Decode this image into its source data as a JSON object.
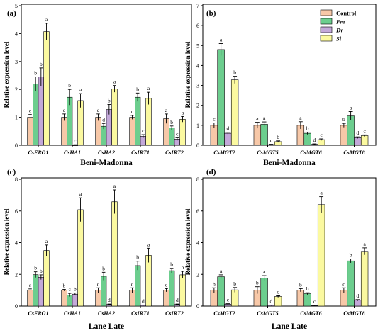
{
  "chart_data": [
    {
      "type": "bar",
      "panel_label": "(a)",
      "ylabel": "Relative expression level",
      "xlabel": "Beni-Madonna",
      "ylim": [
        0,
        5
      ],
      "yticks": [
        0,
        1,
        2,
        3,
        4,
        5
      ],
      "categories": [
        "CsFRO1",
        "CsHA1",
        "CsHA2",
        "CsIRT1",
        "CsIRT2"
      ],
      "series": [
        {
          "name": "Control",
          "values": [
            1.0,
            1.0,
            1.0,
            1.0,
            0.95
          ],
          "errors": [
            0.1,
            0.12,
            0.12,
            0.07,
            0.17
          ],
          "letters": [
            "c",
            "c",
            "c",
            "c",
            "a"
          ]
        },
        {
          "name": "Fm",
          "values": [
            2.2,
            1.72,
            0.68,
            1.72,
            0.62
          ],
          "errors": [
            0.25,
            0.28,
            0.1,
            0.15,
            0.07
          ],
          "letters": [
            "b",
            "b",
            "d",
            "b",
            "b"
          ]
        },
        {
          "name": "Dv",
          "values": [
            2.45,
            0.0,
            1.28,
            0.32,
            0.22
          ],
          "errors": [
            0.32,
            0.02,
            0.18,
            0.06,
            0.05
          ],
          "letters": [
            "b",
            "c",
            "b",
            "c",
            "c"
          ]
        },
        {
          "name": "Si",
          "values": [
            4.07,
            1.6,
            2.02,
            1.68,
            0.93
          ],
          "errors": [
            0.3,
            0.25,
            0.12,
            0.22,
            0.1
          ],
          "letters": [
            "a",
            "a",
            "a",
            "a",
            "a"
          ]
        }
      ]
    },
    {
      "type": "bar",
      "panel_label": "(b)",
      "ylabel": "Relative expression level",
      "xlabel": "Beni-Madonna",
      "ylim": [
        0,
        7
      ],
      "yticks": [
        0,
        1,
        2,
        3,
        4,
        5,
        6,
        7
      ],
      "categories": [
        "CsMGT2",
        "CsMGT5",
        "CsMGT6",
        "CsMGT8"
      ],
      "series": [
        {
          "name": "Control",
          "values": [
            1.0,
            1.0,
            1.0,
            1.0
          ],
          "errors": [
            0.12,
            0.15,
            0.18,
            0.1
          ],
          "letters": [
            "c",
            "a",
            "a",
            "b"
          ]
        },
        {
          "name": "Fm",
          "values": [
            4.8,
            1.05,
            0.6,
            1.47
          ],
          "errors": [
            0.3,
            0.12,
            0.06,
            0.22
          ],
          "letters": [
            "a",
            "a",
            "b",
            "a"
          ]
        },
        {
          "name": "Dv",
          "values": [
            0.6,
            0.03,
            0.05,
            0.38
          ],
          "errors": [
            0.05,
            0.02,
            0.02,
            0.04
          ],
          "letters": [
            "d",
            "c",
            "d",
            "d"
          ]
        },
        {
          "name": "Si",
          "values": [
            3.28,
            0.18,
            0.28,
            0.48
          ],
          "errors": [
            0.18,
            0.04,
            0.04,
            0.04
          ],
          "letters": [
            "b",
            "b",
            "c",
            "c"
          ]
        }
      ]
    },
    {
      "type": "bar",
      "panel_label": "(c)",
      "ylabel": "Relative expression level",
      "xlabel": "Lane Late",
      "ylim": [
        0,
        8
      ],
      "yticks": [
        0,
        2,
        4,
        6,
        8
      ],
      "categories": [
        "CsFRO1",
        "CsHA1",
        "CsHA2",
        "CsIRT1",
        "CsIRT2"
      ],
      "series": [
        {
          "name": "Control",
          "values": [
            1.0,
            1.0,
            1.0,
            1.0,
            1.0
          ],
          "errors": [
            0.08,
            0.05,
            0.15,
            0.15,
            0.1
          ],
          "letters": [
            "c",
            "b",
            "c",
            "c",
            "c"
          ]
        },
        {
          "name": "Fm",
          "values": [
            1.98,
            0.7,
            1.88,
            2.55,
            2.23
          ],
          "errors": [
            0.18,
            0.1,
            0.25,
            0.28,
            0.15
          ],
          "letters": [
            "b",
            "c",
            "b",
            "b",
            "b"
          ]
        },
        {
          "name": "Dv",
          "values": [
            1.82,
            0.75,
            0.1,
            0.05,
            0.1
          ],
          "errors": [
            0.15,
            0.08,
            0.03,
            0.02,
            0.03
          ],
          "letters": [
            "b",
            "b",
            "d",
            "d",
            "d"
          ]
        },
        {
          "name": "Si",
          "values": [
            3.5,
            6.08,
            6.58,
            3.2,
            1.97
          ],
          "errors": [
            0.35,
            0.75,
            0.75,
            0.45,
            0.22
          ],
          "letters": [
            "a",
            "a",
            "a",
            "a",
            "b"
          ]
        }
      ]
    },
    {
      "type": "bar",
      "panel_label": "(d)",
      "ylabel": "Relative expression level",
      "xlabel": "Lane Late",
      "ylim": [
        0,
        8
      ],
      "yticks": [
        0,
        2,
        4,
        6,
        8
      ],
      "categories": [
        "CsMGT2",
        "CsMGT5",
        "CsMGT6",
        "CsMGT8"
      ],
      "series": [
        {
          "name": "Control",
          "values": [
            1.0,
            1.0,
            1.0,
            1.0
          ],
          "errors": [
            0.15,
            0.22,
            0.1,
            0.15
          ],
          "letters": [
            "b",
            "b",
            "b",
            "c"
          ]
        },
        {
          "name": "Fm",
          "values": [
            1.85,
            1.77,
            0.78,
            2.85
          ],
          "errors": [
            0.12,
            0.15,
            0.06,
            0.12
          ],
          "letters": [
            "a",
            "a",
            "b",
            "b"
          ]
        },
        {
          "name": "Dv",
          "values": [
            0.12,
            0.05,
            0.03,
            0.37
          ],
          "errors": [
            0.03,
            0.02,
            0.02,
            0.04
          ],
          "letters": [
            "c",
            "d",
            "c",
            "d"
          ]
        },
        {
          "name": "Si",
          "values": [
            1.02,
            0.6,
            6.4,
            3.45
          ],
          "errors": [
            0.15,
            0.05,
            0.5,
            0.22
          ],
          "letters": [
            "b",
            "c",
            "a",
            "a"
          ]
        }
      ]
    }
  ],
  "legend": {
    "placement": "top-right of panel (b)",
    "entries": [
      {
        "label": "Control",
        "color": "#f7c8a8",
        "italic": false
      },
      {
        "label": "Fm",
        "color": "#6cce8e",
        "italic": true
      },
      {
        "label": "Dv",
        "color": "#c3a8d9",
        "italic": true
      },
      {
        "label": "Si",
        "color": "#fbf9a0",
        "italic": true
      }
    ]
  }
}
